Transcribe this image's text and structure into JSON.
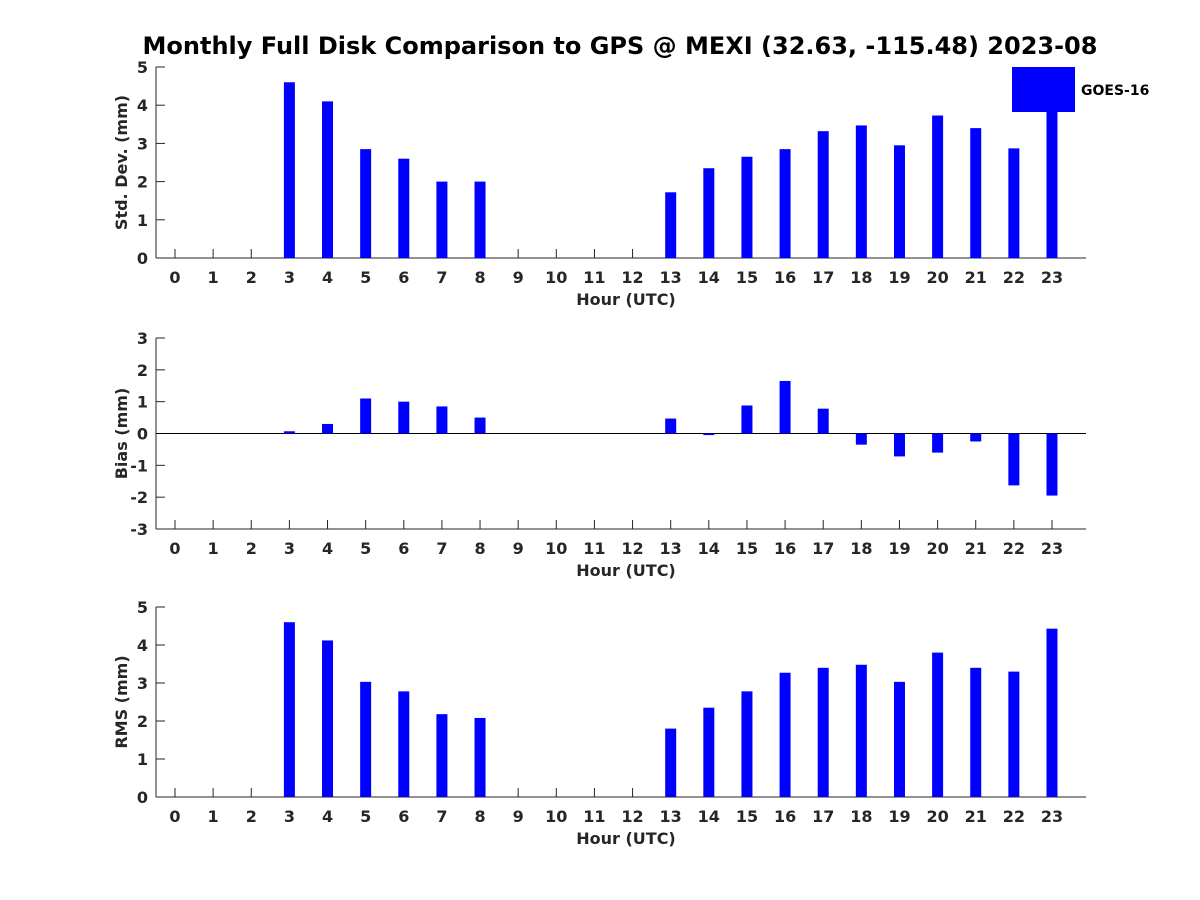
{
  "chart_data": {
    "title": "Monthly Full Disk Comparison to GPS @ MEXI (32.63, -115.48) 2023-08",
    "type": "bar",
    "series_color": "#0000ff",
    "legend": {
      "label": "GOES-16",
      "placement": "top-right"
    },
    "panels": [
      {
        "id": "std",
        "type": "bar",
        "ylabel": "Std. Dev. (mm)",
        "xlabel": "Hour (UTC)",
        "ylim": [
          0,
          5
        ],
        "yticks": [
          0,
          1,
          2,
          3,
          4,
          5
        ],
        "categories": [
          "0",
          "1",
          "2",
          "3",
          "4",
          "5",
          "6",
          "7",
          "8",
          "9",
          "10",
          "11",
          "12",
          "13",
          "14",
          "15",
          "16",
          "17",
          "18",
          "19",
          "20",
          "21",
          "22",
          "23"
        ],
        "values": [
          null,
          null,
          null,
          4.6,
          4.1,
          2.85,
          2.6,
          2.0,
          2.0,
          null,
          null,
          null,
          null,
          1.72,
          2.35,
          2.65,
          2.85,
          3.32,
          3.47,
          2.95,
          3.73,
          3.4,
          2.87,
          3.85
        ]
      },
      {
        "id": "bias",
        "type": "bar",
        "ylabel": "Bias (mm)",
        "xlabel": "Hour (UTC)",
        "ylim": [
          -3,
          3
        ],
        "yticks": [
          -3,
          -2,
          -1,
          0,
          1,
          2,
          3
        ],
        "categories": [
          "0",
          "1",
          "2",
          "3",
          "4",
          "5",
          "6",
          "7",
          "8",
          "9",
          "10",
          "11",
          "12",
          "13",
          "14",
          "15",
          "16",
          "17",
          "18",
          "19",
          "20",
          "21",
          "22",
          "23"
        ],
        "values": [
          null,
          null,
          null,
          0.07,
          0.3,
          1.1,
          1.0,
          0.85,
          0.5,
          null,
          null,
          null,
          null,
          0.47,
          -0.05,
          0.88,
          1.65,
          0.78,
          -0.35,
          -0.72,
          -0.6,
          -0.25,
          -1.63,
          -1.95
        ]
      },
      {
        "id": "rms",
        "type": "bar",
        "ylabel": "RMS (mm)",
        "xlabel": "Hour (UTC)",
        "ylim": [
          0,
          5
        ],
        "yticks": [
          0,
          1,
          2,
          3,
          4,
          5
        ],
        "categories": [
          "0",
          "1",
          "2",
          "3",
          "4",
          "5",
          "6",
          "7",
          "8",
          "9",
          "10",
          "11",
          "12",
          "13",
          "14",
          "15",
          "16",
          "17",
          "18",
          "19",
          "20",
          "21",
          "22",
          "23"
        ],
        "values": [
          null,
          null,
          null,
          4.6,
          4.12,
          3.03,
          2.78,
          2.18,
          2.08,
          null,
          null,
          null,
          null,
          1.8,
          2.35,
          2.78,
          3.27,
          3.4,
          3.48,
          3.03,
          3.8,
          3.4,
          3.3,
          4.43
        ]
      }
    ]
  }
}
